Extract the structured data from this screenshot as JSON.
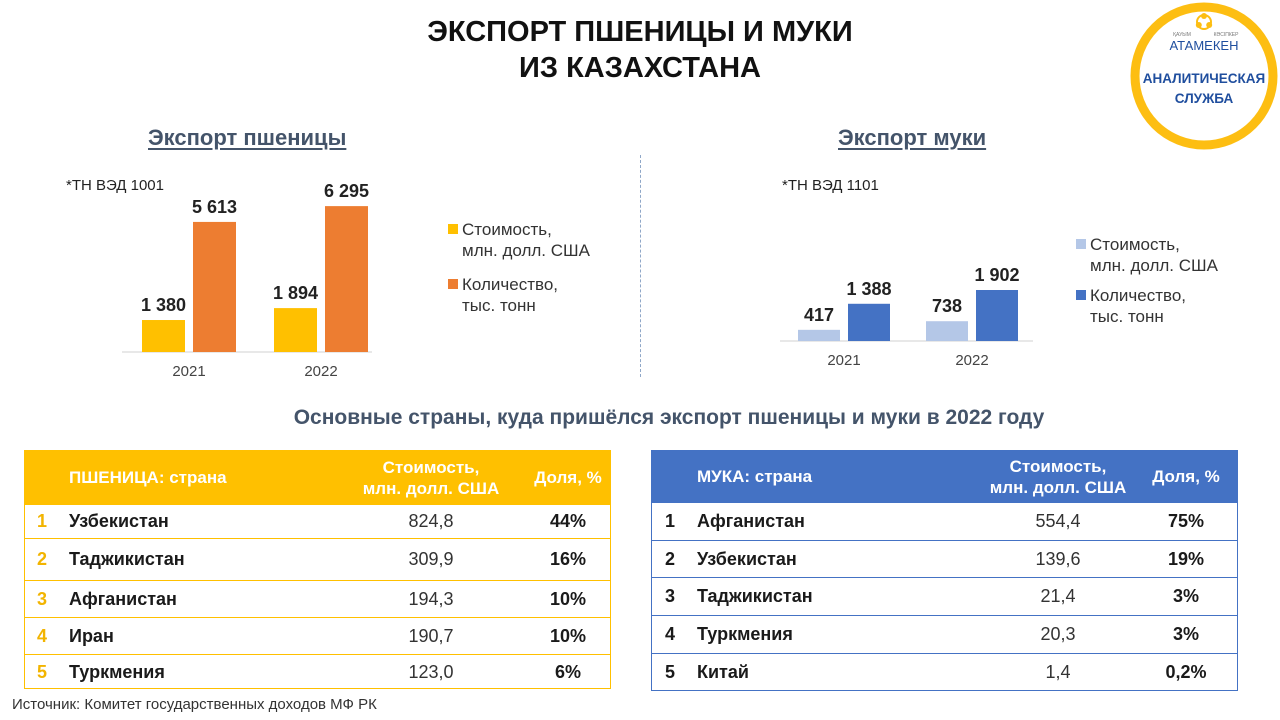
{
  "header": {
    "title_line1": "ЭКСПОРТ ПШЕНИЦЫ И МУКИ",
    "title_line2": "ИЗ КАЗАХСТАНА"
  },
  "logo": {
    "small_left": "ҚАУЫМ",
    "small_right": "КӘСІПКЕР",
    "brand": "АТАМЕКЕН",
    "line1": "АНАЛИТИЧЕСКАЯ",
    "line2": "СЛУЖБА",
    "ring_color": "#fdbe12",
    "brand_color": "#1f4e9e"
  },
  "wheat_chart": {
    "section_title": "Экспорт  пшеницы",
    "code_note": "*ТН ВЭД 1001",
    "legend": [
      {
        "line1": "Стоимость,",
        "line2": "млн. долл. США"
      },
      {
        "line1": "Количество,",
        "line2": "тыс. тонн"
      }
    ]
  },
  "flour_chart": {
    "section_title": "Экспорт  муки",
    "code_note": "*ТН ВЭД 1101",
    "legend": [
      {
        "line1": "Стоимость,",
        "line2": "млн. долл. США"
      },
      {
        "line1": "Количество,",
        "line2": "тыс. тонн"
      }
    ]
  },
  "chart_data": [
    {
      "type": "bar",
      "title": "Экспорт  пшеницы",
      "categories": [
        "2021",
        "2022"
      ],
      "series": [
        {
          "name": "Стоимость, млн. долл. США",
          "values": [
            1380,
            1894
          ],
          "labels": [
            "1 380",
            "1 894"
          ],
          "color": "#ffc000"
        },
        {
          "name": "Количество, тыс. тонн",
          "values": [
            5613,
            6295
          ],
          "labels": [
            "5 613",
            "6 295"
          ],
          "color": "#ed7d31"
        }
      ],
      "ylim": [
        0,
        6300
      ],
      "grid": false,
      "legend_position": "right"
    },
    {
      "type": "bar",
      "title": "Экспорт  муки",
      "categories": [
        "2021",
        "2022"
      ],
      "series": [
        {
          "name": "Стоимость, млн. долл. США",
          "values": [
            417,
            738
          ],
          "labels": [
            "417",
            "738"
          ],
          "color": "#b4c7e7"
        },
        {
          "name": "Количество, тыс. тонн",
          "values": [
            1388,
            1902
          ],
          "labels": [
            "1 388",
            "1 902"
          ],
          "color": "#4472c4"
        }
      ],
      "ylim": [
        0,
        1902
      ],
      "grid": false,
      "legend_position": "right"
    }
  ],
  "countries_subtitle": "Основные страны, куда пришёлся экспорт пшеницы и муки в 2022 году",
  "wheat_table": {
    "header": {
      "country": "ПШЕНИЦА: страна",
      "value_line1": "Стоимость,",
      "value_line2": "млн. долл. США",
      "share": "Доля, %"
    },
    "rows": [
      {
        "rank": "1",
        "country": "Узбекистан",
        "value": "824,8",
        "share": "44%"
      },
      {
        "rank": "2",
        "country": "Таджикистан",
        "value": "309,9",
        "share": "16%"
      },
      {
        "rank": "3",
        "country": "Афганистан",
        "value": "194,3",
        "share": "10%"
      },
      {
        "rank": "4",
        "country": "Иран",
        "value": "190,7",
        "share": "10%"
      },
      {
        "rank": "5",
        "country": "Туркмения",
        "value": "123,0",
        "share": "6%"
      }
    ]
  },
  "flour_table": {
    "header": {
      "country": "МУКА: страна",
      "value_line1": "Стоимость,",
      "value_line2": "млн. долл. США",
      "share": "Доля, %"
    },
    "rows": [
      {
        "rank": "1",
        "country": "Афганистан",
        "value": "554,4",
        "share": "75%"
      },
      {
        "rank": "2",
        "country": "Узбекистан",
        "value": "139,6",
        "share": "19%"
      },
      {
        "rank": "3",
        "country": "Таджикистан",
        "value": "21,4",
        "share": "3%"
      },
      {
        "rank": "4",
        "country": "Туркмения",
        "value": "20,3",
        "share": "3%"
      },
      {
        "rank": "5",
        "country": "Китай",
        "value": "1,4",
        "share": "0,2%"
      }
    ]
  },
  "source": "Источник: Комитет государственных доходов МФ РК"
}
